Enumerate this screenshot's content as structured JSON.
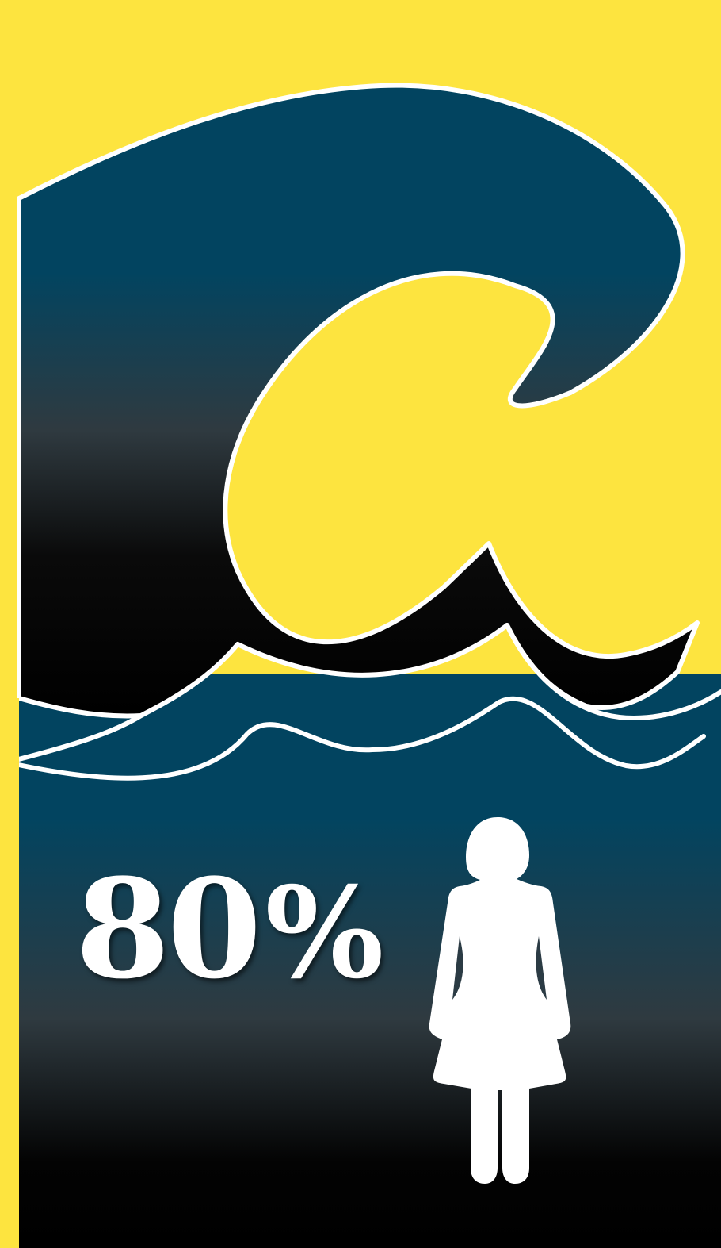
{
  "statistic": {
    "value": "80",
    "unit": "%",
    "fraction": 0.8
  },
  "icons": {
    "wave": "tsunami-wave-icon",
    "person": "woman-figure-icon"
  },
  "colors": {
    "background": "#fde43f",
    "wave_top": "#024460",
    "wave_dark": "#000000",
    "sea_top": "#024460",
    "sea_mid": "#2f3a40",
    "sea_bottom": "#000000",
    "outline": "#ffffff",
    "figure": "#ffffff"
  }
}
